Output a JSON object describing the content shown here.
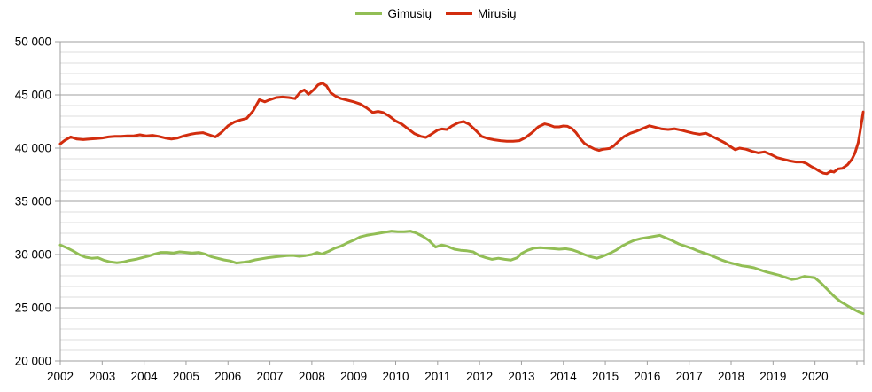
{
  "legend": {
    "items": [
      {
        "label": "Gimusių",
        "color": "#92BE55"
      },
      {
        "label": "Mirusių",
        "color": "#D22D0E"
      }
    ]
  },
  "colors": {
    "background": "#ffffff",
    "minor_gridline": "#dcdcdc",
    "major_gridline": "#9f9f9f",
    "axis": "#9f9f9f",
    "label_text": "#000000"
  },
  "chart_data": {
    "type": "line",
    "title": "",
    "xlabel": "",
    "ylabel": "",
    "grid": "on",
    "legend_position": "top-center",
    "x_axis": {
      "range": [
        2002,
        2021.17
      ],
      "ticks": [
        2002,
        2003,
        2004,
        2005,
        2006,
        2007,
        2008,
        2009,
        2010,
        2011,
        2012,
        2013,
        2014,
        2015,
        2016,
        2017,
        2018,
        2019,
        2020,
        2021
      ],
      "tick_labels": [
        "2002",
        "2003",
        "2004",
        "2005",
        "2006",
        "2007",
        "2008",
        "2009",
        "2010",
        "2011",
        "2012",
        "2013",
        "2014",
        "2015",
        "2016",
        "2017",
        "2018",
        "2019",
        "2020"
      ]
    },
    "y_axis": {
      "range": [
        20000,
        50000
      ],
      "major_step": 5000,
      "minor_step": 1000,
      "major_ticks": [
        20000,
        25000,
        30000,
        35000,
        40000,
        45000,
        50000
      ],
      "tick_labels": [
        "20 000",
        "25 000",
        "30 000",
        "35 000",
        "40 000",
        "45 000",
        "50 000"
      ]
    },
    "series": [
      {
        "name": "Gimusių",
        "color": "#92BE55",
        "points": [
          [
            2002.0,
            30900
          ],
          [
            2002.15,
            30650
          ],
          [
            2002.3,
            30350
          ],
          [
            2002.45,
            30000
          ],
          [
            2002.6,
            29750
          ],
          [
            2002.75,
            29650
          ],
          [
            2002.9,
            29700
          ],
          [
            2003.05,
            29450
          ],
          [
            2003.2,
            29300
          ],
          [
            2003.35,
            29230
          ],
          [
            2003.5,
            29300
          ],
          [
            2003.65,
            29450
          ],
          [
            2003.8,
            29550
          ],
          [
            2003.95,
            29700
          ],
          [
            2004.1,
            29850
          ],
          [
            2004.25,
            30050
          ],
          [
            2004.4,
            30200
          ],
          [
            2004.55,
            30200
          ],
          [
            2004.7,
            30150
          ],
          [
            2004.85,
            30250
          ],
          [
            2005.0,
            30200
          ],
          [
            2005.15,
            30150
          ],
          [
            2005.3,
            30200
          ],
          [
            2005.45,
            30050
          ],
          [
            2005.6,
            29800
          ],
          [
            2005.75,
            29650
          ],
          [
            2005.9,
            29500
          ],
          [
            2006.05,
            29400
          ],
          [
            2006.2,
            29200
          ],
          [
            2006.35,
            29270
          ],
          [
            2006.5,
            29350
          ],
          [
            2006.65,
            29500
          ],
          [
            2006.8,
            29600
          ],
          [
            2006.95,
            29700
          ],
          [
            2007.1,
            29770
          ],
          [
            2007.25,
            29830
          ],
          [
            2007.4,
            29900
          ],
          [
            2007.55,
            29920
          ],
          [
            2007.7,
            29830
          ],
          [
            2007.85,
            29900
          ],
          [
            2008.0,
            30000
          ],
          [
            2008.13,
            30190
          ],
          [
            2008.24,
            30050
          ],
          [
            2008.4,
            30300
          ],
          [
            2008.55,
            30600
          ],
          [
            2008.7,
            30800
          ],
          [
            2008.85,
            31100
          ],
          [
            2009.0,
            31350
          ],
          [
            2009.15,
            31650
          ],
          [
            2009.3,
            31800
          ],
          [
            2009.45,
            31900
          ],
          [
            2009.6,
            32000
          ],
          [
            2009.75,
            32100
          ],
          [
            2009.9,
            32200
          ],
          [
            2010.05,
            32150
          ],
          [
            2010.2,
            32150
          ],
          [
            2010.35,
            32200
          ],
          [
            2010.5,
            32000
          ],
          [
            2010.65,
            31700
          ],
          [
            2010.8,
            31300
          ],
          [
            2010.95,
            30700
          ],
          [
            2011.1,
            30900
          ],
          [
            2011.25,
            30750
          ],
          [
            2011.4,
            30500
          ],
          [
            2011.55,
            30400
          ],
          [
            2011.7,
            30350
          ],
          [
            2011.85,
            30250
          ],
          [
            2012.0,
            29900
          ],
          [
            2012.15,
            29700
          ],
          [
            2012.3,
            29550
          ],
          [
            2012.45,
            29650
          ],
          [
            2012.6,
            29550
          ],
          [
            2012.75,
            29480
          ],
          [
            2012.9,
            29700
          ],
          [
            2013.0,
            30100
          ],
          [
            2013.15,
            30400
          ],
          [
            2013.3,
            30600
          ],
          [
            2013.45,
            30650
          ],
          [
            2013.6,
            30600
          ],
          [
            2013.75,
            30550
          ],
          [
            2013.9,
            30500
          ],
          [
            2014.05,
            30550
          ],
          [
            2014.2,
            30450
          ],
          [
            2014.35,
            30250
          ],
          [
            2014.5,
            30000
          ],
          [
            2014.65,
            29800
          ],
          [
            2014.8,
            29650
          ],
          [
            2014.95,
            29850
          ],
          [
            2015.1,
            30100
          ],
          [
            2015.25,
            30400
          ],
          [
            2015.4,
            30800
          ],
          [
            2015.55,
            31100
          ],
          [
            2015.7,
            31350
          ],
          [
            2015.85,
            31500
          ],
          [
            2016.0,
            31600
          ],
          [
            2016.15,
            31700
          ],
          [
            2016.3,
            31800
          ],
          [
            2016.45,
            31550
          ],
          [
            2016.6,
            31300
          ],
          [
            2016.75,
            31000
          ],
          [
            2016.9,
            30800
          ],
          [
            2017.05,
            30600
          ],
          [
            2017.2,
            30350
          ],
          [
            2017.35,
            30150
          ],
          [
            2017.5,
            29950
          ],
          [
            2017.65,
            29700
          ],
          [
            2017.8,
            29450
          ],
          [
            2017.95,
            29250
          ],
          [
            2018.1,
            29100
          ],
          [
            2018.25,
            28950
          ],
          [
            2018.4,
            28870
          ],
          [
            2018.55,
            28750
          ],
          [
            2018.7,
            28550
          ],
          [
            2018.85,
            28350
          ],
          [
            2019.0,
            28200
          ],
          [
            2019.15,
            28050
          ],
          [
            2019.3,
            27850
          ],
          [
            2019.45,
            27650
          ],
          [
            2019.6,
            27750
          ],
          [
            2019.75,
            27950
          ],
          [
            2019.9,
            27870
          ],
          [
            2020.0,
            27800
          ],
          [
            2020.15,
            27300
          ],
          [
            2020.3,
            26700
          ],
          [
            2020.45,
            26100
          ],
          [
            2020.6,
            25600
          ],
          [
            2020.75,
            25250
          ],
          [
            2020.9,
            24900
          ],
          [
            2021.05,
            24600
          ],
          [
            2021.15,
            24450
          ]
        ]
      },
      {
        "name": "Mirusių",
        "color": "#D22D0E",
        "points": [
          [
            2002.0,
            40400
          ],
          [
            2002.1,
            40700
          ],
          [
            2002.25,
            41050
          ],
          [
            2002.4,
            40850
          ],
          [
            2002.55,
            40800
          ],
          [
            2002.7,
            40850
          ],
          [
            2002.85,
            40900
          ],
          [
            2003.0,
            40950
          ],
          [
            2003.15,
            41050
          ],
          [
            2003.3,
            41100
          ],
          [
            2003.45,
            41100
          ],
          [
            2003.6,
            41150
          ],
          [
            2003.75,
            41150
          ],
          [
            2003.9,
            41250
          ],
          [
            2004.05,
            41150
          ],
          [
            2004.2,
            41200
          ],
          [
            2004.35,
            41100
          ],
          [
            2004.5,
            40950
          ],
          [
            2004.65,
            40850
          ],
          [
            2004.8,
            40950
          ],
          [
            2004.95,
            41150
          ],
          [
            2005.1,
            41300
          ],
          [
            2005.25,
            41400
          ],
          [
            2005.4,
            41450
          ],
          [
            2005.55,
            41250
          ],
          [
            2005.7,
            41050
          ],
          [
            2005.85,
            41500
          ],
          [
            2006.0,
            42100
          ],
          [
            2006.15,
            42450
          ],
          [
            2006.3,
            42650
          ],
          [
            2006.45,
            42800
          ],
          [
            2006.6,
            43500
          ],
          [
            2006.75,
            44550
          ],
          [
            2006.88,
            44350
          ],
          [
            2007.0,
            44550
          ],
          [
            2007.15,
            44750
          ],
          [
            2007.3,
            44800
          ],
          [
            2007.45,
            44750
          ],
          [
            2007.6,
            44650
          ],
          [
            2007.72,
            45250
          ],
          [
            2007.82,
            45470
          ],
          [
            2007.92,
            45050
          ],
          [
            2008.05,
            45500
          ],
          [
            2008.15,
            45950
          ],
          [
            2008.25,
            46100
          ],
          [
            2008.35,
            45850
          ],
          [
            2008.45,
            45200
          ],
          [
            2008.58,
            44850
          ],
          [
            2008.7,
            44650
          ],
          [
            2008.85,
            44500
          ],
          [
            2009.0,
            44350
          ],
          [
            2009.15,
            44150
          ],
          [
            2009.3,
            43800
          ],
          [
            2009.45,
            43350
          ],
          [
            2009.58,
            43450
          ],
          [
            2009.7,
            43350
          ],
          [
            2009.85,
            43000
          ],
          [
            2010.0,
            42550
          ],
          [
            2010.15,
            42250
          ],
          [
            2010.3,
            41800
          ],
          [
            2010.45,
            41350
          ],
          [
            2010.6,
            41100
          ],
          [
            2010.72,
            41000
          ],
          [
            2010.85,
            41300
          ],
          [
            2011.0,
            41700
          ],
          [
            2011.1,
            41800
          ],
          [
            2011.22,
            41750
          ],
          [
            2011.35,
            42100
          ],
          [
            2011.5,
            42400
          ],
          [
            2011.62,
            42500
          ],
          [
            2011.75,
            42250
          ],
          [
            2011.9,
            41700
          ],
          [
            2012.05,
            41100
          ],
          [
            2012.2,
            40900
          ],
          [
            2012.35,
            40780
          ],
          [
            2012.5,
            40700
          ],
          [
            2012.65,
            40650
          ],
          [
            2012.8,
            40650
          ],
          [
            2012.95,
            40700
          ],
          [
            2013.1,
            41000
          ],
          [
            2013.25,
            41450
          ],
          [
            2013.4,
            42000
          ],
          [
            2013.55,
            42280
          ],
          [
            2013.65,
            42190
          ],
          [
            2013.78,
            42000
          ],
          [
            2013.9,
            42000
          ],
          [
            2014.0,
            42080
          ],
          [
            2014.1,
            42050
          ],
          [
            2014.2,
            41850
          ],
          [
            2014.3,
            41450
          ],
          [
            2014.4,
            40900
          ],
          [
            2014.5,
            40450
          ],
          [
            2014.62,
            40150
          ],
          [
            2014.75,
            39900
          ],
          [
            2014.85,
            39780
          ],
          [
            2014.95,
            39900
          ],
          [
            2015.1,
            39970
          ],
          [
            2015.2,
            40200
          ],
          [
            2015.33,
            40700
          ],
          [
            2015.45,
            41100
          ],
          [
            2015.6,
            41400
          ],
          [
            2015.75,
            41600
          ],
          [
            2015.9,
            41850
          ],
          [
            2016.05,
            42100
          ],
          [
            2016.2,
            41950
          ],
          [
            2016.35,
            41800
          ],
          [
            2016.5,
            41750
          ],
          [
            2016.65,
            41820
          ],
          [
            2016.8,
            41700
          ],
          [
            2016.95,
            41550
          ],
          [
            2017.1,
            41400
          ],
          [
            2017.25,
            41300
          ],
          [
            2017.4,
            41400
          ],
          [
            2017.55,
            41100
          ],
          [
            2017.7,
            40800
          ],
          [
            2017.85,
            40500
          ],
          [
            2018.0,
            40100
          ],
          [
            2018.1,
            39850
          ],
          [
            2018.2,
            40000
          ],
          [
            2018.35,
            39900
          ],
          [
            2018.5,
            39700
          ],
          [
            2018.65,
            39550
          ],
          [
            2018.8,
            39650
          ],
          [
            2018.95,
            39400
          ],
          [
            2019.1,
            39100
          ],
          [
            2019.25,
            38950
          ],
          [
            2019.4,
            38800
          ],
          [
            2019.55,
            38700
          ],
          [
            2019.7,
            38700
          ],
          [
            2019.8,
            38550
          ],
          [
            2019.9,
            38300
          ],
          [
            2020.0,
            38100
          ],
          [
            2020.1,
            37850
          ],
          [
            2020.2,
            37650
          ],
          [
            2020.28,
            37600
          ],
          [
            2020.38,
            37830
          ],
          [
            2020.45,
            37750
          ],
          [
            2020.55,
            38050
          ],
          [
            2020.65,
            38100
          ],
          [
            2020.78,
            38450
          ],
          [
            2020.88,
            38950
          ],
          [
            2020.95,
            39500
          ],
          [
            2021.03,
            40500
          ],
          [
            2021.08,
            41600
          ],
          [
            2021.15,
            43400
          ]
        ]
      }
    ]
  }
}
